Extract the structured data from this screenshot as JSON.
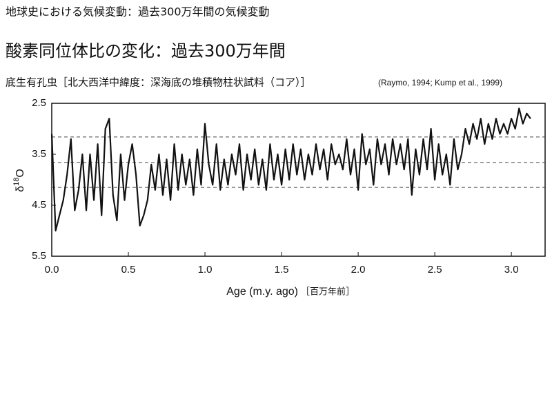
{
  "chart_data": {
    "type": "line",
    "title": "地球史における気候変動：過去300万年間の気候変動",
    "heading": "酸素同位体比の変化：過去300万年間",
    "subtitle": "底生有孔虫［北大西洋中緯度：深海底の堆積物柱状試料（コア）］",
    "citation": "(Raymo, 1994; Kump et al., 1999)",
    "xlabel": "Age (m.y. ago)",
    "xlabel_note": "［百万年前］",
    "ylabel": [
      "δ",
      "18",
      "O"
    ],
    "xlim": [
      0,
      3.22
    ],
    "ylim": [
      2.5,
      5.5
    ],
    "y_inverted": true,
    "xticks": [
      {
        "value": 0,
        "label": "0.0"
      },
      0.5,
      {
        "value": 1,
        "label": "1.0"
      },
      1.5,
      {
        "value": 2,
        "label": "2.0"
      },
      2.5,
      {
        "value": 3,
        "label": "3.0"
      }
    ],
    "yticks": [
      2.5,
      3.5,
      4.5,
      5.5
    ],
    "reference_lines": [
      3.16,
      3.66,
      4.15
    ],
    "color": "#111111",
    "x": [
      0,
      0.025,
      0.05,
      0.075,
      0.1,
      0.125,
      0.15,
      0.175,
      0.2,
      0.225,
      0.25,
      0.275,
      0.3,
      0.325,
      0.35,
      0.375,
      0.4,
      0.425,
      0.45,
      0.475,
      0.5,
      0.525,
      0.55,
      0.575,
      0.6,
      0.625,
      0.65,
      0.675,
      0.7,
      0.725,
      0.75,
      0.775,
      0.8,
      0.825,
      0.85,
      0.875,
      0.9,
      0.925,
      0.95,
      0.975,
      1,
      1.025,
      1.05,
      1.075,
      1.1,
      1.125,
      1.15,
      1.175,
      1.2,
      1.225,
      1.25,
      1.275,
      1.3,
      1.325,
      1.35,
      1.375,
      1.4,
      1.425,
      1.45,
      1.475,
      1.5,
      1.525,
      1.55,
      1.575,
      1.6,
      1.625,
      1.65,
      1.675,
      1.7,
      1.725,
      1.75,
      1.775,
      1.8,
      1.825,
      1.85,
      1.875,
      1.9,
      1.925,
      1.95,
      1.975,
      2,
      2.025,
      2.05,
      2.075,
      2.1,
      2.125,
      2.15,
      2.175,
      2.2,
      2.225,
      2.25,
      2.275,
      2.3,
      2.325,
      2.35,
      2.375,
      2.4,
      2.425,
      2.45,
      2.475,
      2.5,
      2.525,
      2.55,
      2.575,
      2.6,
      2.625,
      2.65,
      2.675,
      2.7,
      2.725,
      2.75,
      2.775,
      2.8,
      2.825,
      2.85,
      2.875,
      2.9,
      2.925,
      2.95,
      2.975,
      3,
      3.025,
      3.05,
      3.075,
      3.1,
      3.125
    ],
    "values": [
      3.1,
      5.0,
      4.7,
      4.4,
      3.9,
      3.2,
      4.6,
      4.2,
      3.5,
      4.6,
      3.5,
      4.4,
      3.3,
      4.7,
      3.0,
      2.8,
      4.3,
      4.8,
      3.5,
      4.4,
      3.7,
      3.3,
      3.9,
      4.9,
      4.7,
      4.4,
      3.7,
      4.2,
      3.5,
      4.3,
      3.6,
      4.4,
      3.3,
      4.2,
      3.5,
      4.1,
      3.6,
      4.3,
      3.4,
      4.1,
      2.9,
      3.7,
      4.1,
      3.3,
      4.2,
      3.6,
      4.1,
      3.5,
      3.9,
      3.3,
      4.2,
      3.5,
      4.0,
      3.4,
      4.1,
      3.6,
      4.2,
      3.3,
      4.0,
      3.5,
      4.1,
      3.4,
      4.0,
      3.3,
      3.9,
      3.4,
      4.0,
      3.5,
      3.9,
      3.3,
      3.8,
      3.4,
      4.0,
      3.3,
      3.7,
      3.5,
      3.8,
      3.2,
      3.9,
      3.4,
      4.2,
      3.1,
      3.7,
      3.4,
      4.1,
      3.2,
      3.7,
      3.3,
      3.9,
      3.2,
      3.7,
      3.3,
      3.8,
      3.2,
      4.3,
      3.4,
      3.9,
      3.2,
      3.8,
      3.0,
      4.0,
      3.3,
      3.9,
      3.5,
      4.1,
      3.2,
      3.8,
      3.5,
      3.0,
      3.3,
      2.9,
      3.2,
      2.8,
      3.3,
      2.9,
      3.2,
      2.8,
      3.1,
      2.9,
      3.1,
      2.8,
      3.0,
      2.6,
      2.9,
      2.7,
      2.8
    ]
  }
}
